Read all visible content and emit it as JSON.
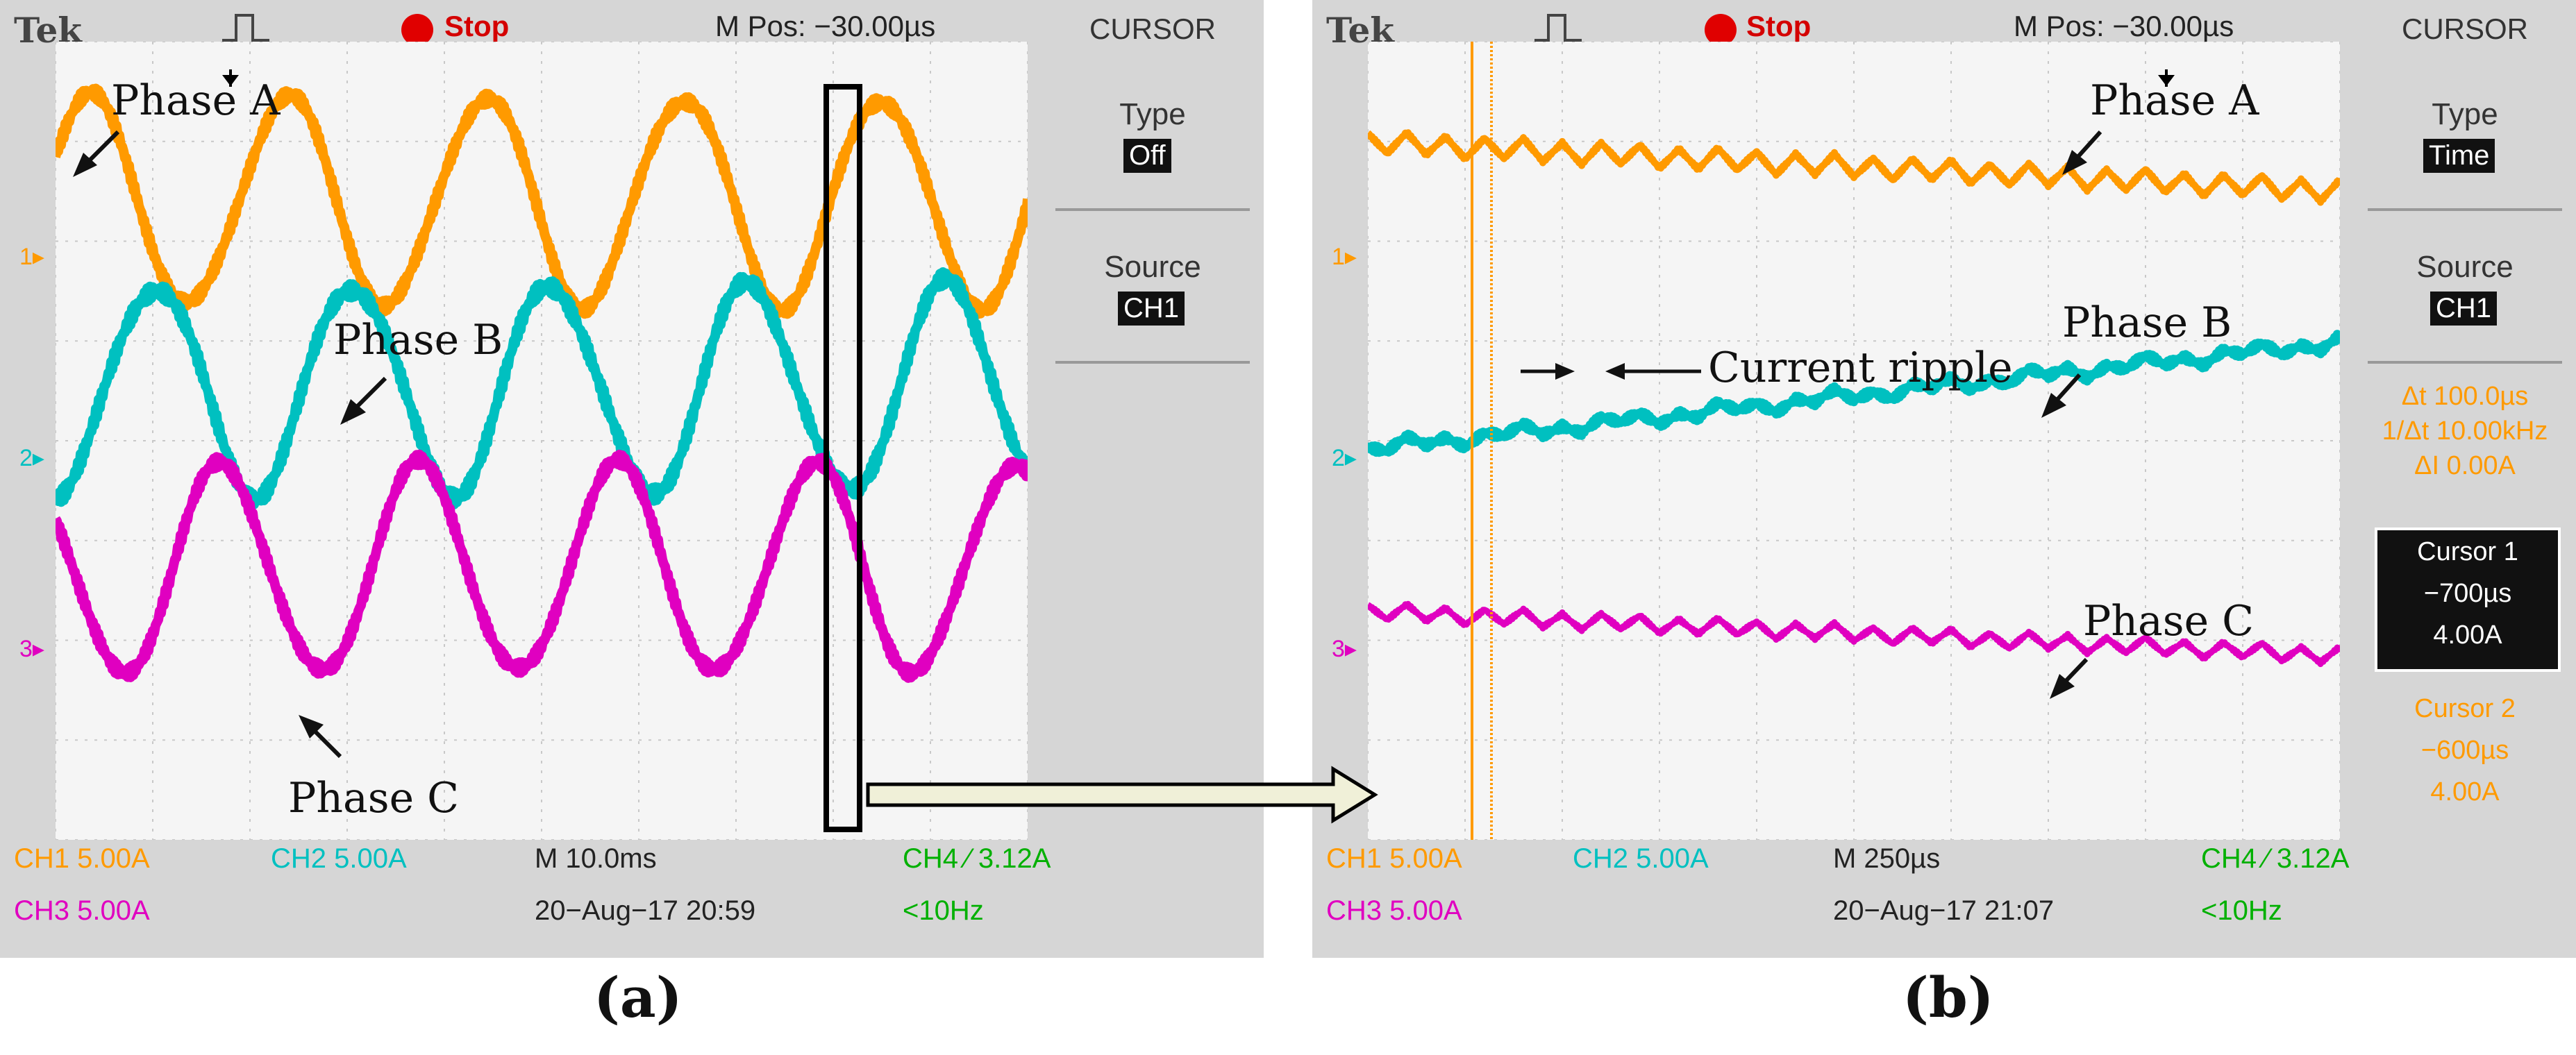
{
  "panel_a": {
    "brand": "Tek",
    "status": "Stop",
    "mpos": "M Pos: −30.00µs",
    "menu_title": "CURSOR",
    "type_label": "Type",
    "type_value": "Off",
    "source_label": "Source",
    "source_value": "CH1",
    "ch1": "CH1  5.00A",
    "ch2": "CH2  5.00A",
    "ch3": "CH3  5.00A",
    "timebase": "M 10.0ms",
    "trigger": "CH4 ∕ 3.12A",
    "date": "20−Aug−17 20:59",
    "freq": "<10Hz",
    "marker1": "1",
    "marker2": "2",
    "marker3": "3",
    "phase_a": "Phase A",
    "phase_b": "Phase B",
    "phase_c": "Phase C",
    "caption": "(a)"
  },
  "panel_b": {
    "brand": "Tek",
    "status": "Stop",
    "mpos": "M Pos: −30.00µs",
    "menu_title": "CURSOR",
    "type_label": "Type",
    "type_value": "Time",
    "source_label": "Source",
    "source_value": "CH1",
    "delta_t": "Δt 100.0µs",
    "inv_delta_t": "1/Δt 10.00kHz",
    "delta_i": "ΔI 0.00A",
    "cursor1_label": "Cursor 1",
    "cursor1_time": "−700µs",
    "cursor1_val": "4.00A",
    "cursor2_label": "Cursor 2",
    "cursor2_time": "−600µs",
    "cursor2_val": "4.00A",
    "ch1": "CH1  5.00A",
    "ch2": "CH2  5.00A",
    "ch3": "CH3  5.00A",
    "timebase": "M 250µs",
    "trigger": "CH4 ∕ 3.12A",
    "date": "20−Aug−17 21:07",
    "freq": "<10Hz",
    "marker1": "1",
    "marker2": "2",
    "marker3": "3",
    "phase_a": "Phase A",
    "phase_b": "Phase B",
    "phase_c": "Phase C",
    "ripple": "Current ripple",
    "caption": "(b)"
  },
  "colors": {
    "phase_a": "#ff9a00",
    "phase_b": "#00c0c0",
    "phase_c": "#e000c0",
    "trigger": "#00b000"
  }
}
